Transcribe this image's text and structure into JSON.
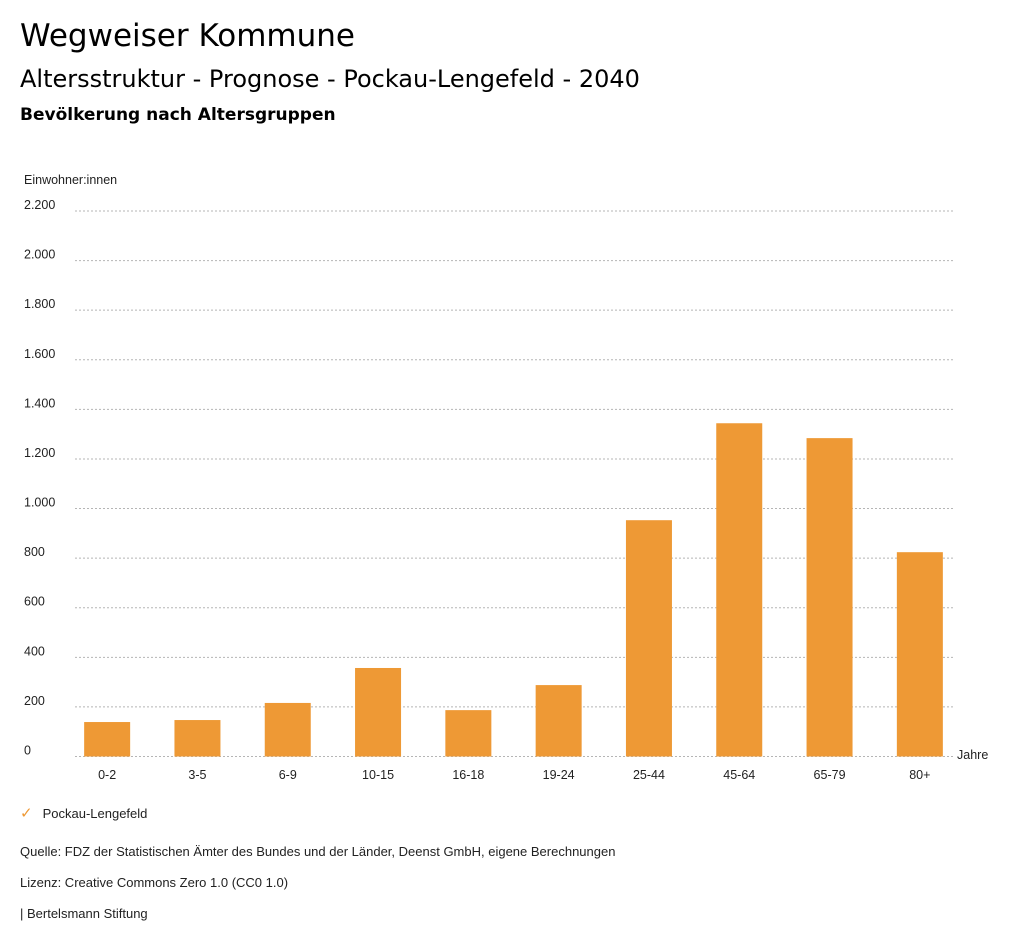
{
  "header": {
    "title": "Wegweiser Kommune",
    "subtitle": "Altersstruktur - Prognose - Pockau-Lengefeld - 2040",
    "section": "Bevölkerung nach Altersgruppen"
  },
  "chart_data": {
    "type": "bar",
    "title": "Bevölkerung nach Altersgruppen",
    "ylabel": "Einwohner:innen",
    "xlabel": "Jahre",
    "categories": [
      "0-2",
      "3-5",
      "6-9",
      "10-15",
      "16-18",
      "19-24",
      "25-44",
      "45-64",
      "65-79",
      "80+"
    ],
    "series": [
      {
        "name": "Pockau-Lengefeld",
        "values": [
          139,
          147,
          216,
          357,
          187,
          288,
          953,
          1344,
          1284,
          824
        ],
        "color": "#EE9935"
      }
    ],
    "ylim": [
      0,
      2200
    ],
    "yticks": [
      0,
      200,
      400,
      600,
      800,
      1000,
      1200,
      1400,
      1600,
      1800,
      2000,
      2200
    ],
    "ytick_labels": [
      "0",
      "200",
      "400",
      "600",
      "800",
      "1.000",
      "1.200",
      "1.400",
      "1.600",
      "1.800",
      "2.000",
      "2.200"
    ],
    "grid": true,
    "legend": "bottom-left"
  },
  "legend": {
    "label": "Pockau-Lengefeld",
    "icon": "check-icon"
  },
  "footer": {
    "source": "Quelle: FDZ der Statistischen Ämter des Bundes und der Länder, Deenst GmbH, eigene Berechnungen",
    "license": "Lizenz: Creative Commons Zero 1.0 (CC0 1.0)",
    "brand": "| Bertelsmann Stiftung"
  }
}
